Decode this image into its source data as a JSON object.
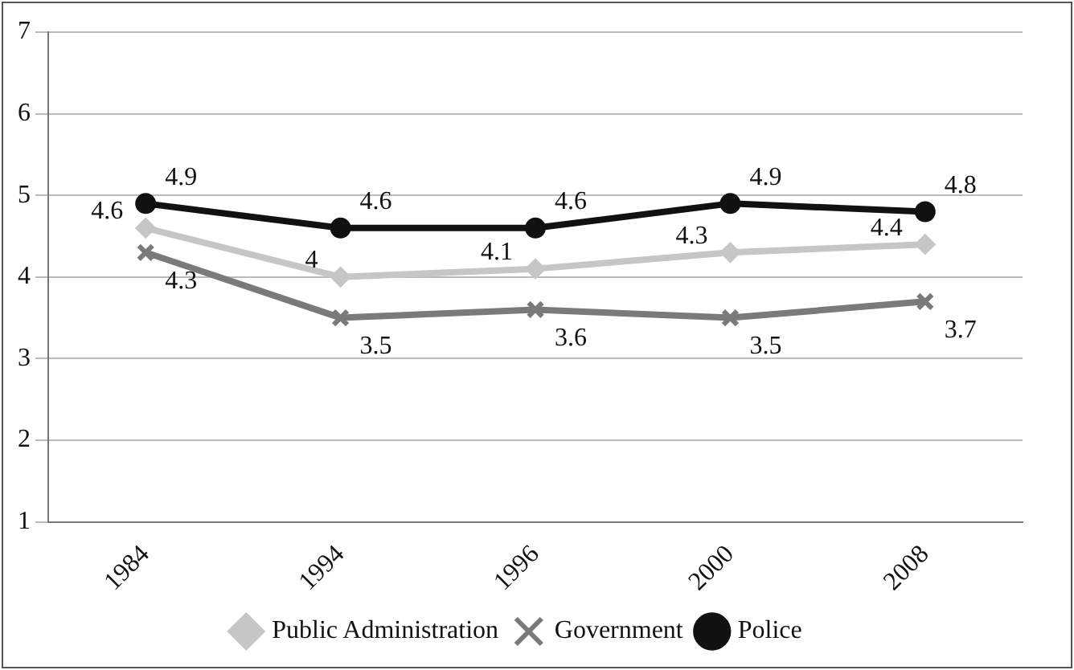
{
  "chart_data": {
    "type": "line",
    "categories": [
      "1984",
      "1994",
      "1996",
      "2000",
      "2008"
    ],
    "series": [
      {
        "name": "Public Administration",
        "color": "#c6c6c6",
        "marker": "diamond",
        "values": [
          4.6,
          4,
          4.1,
          4.3,
          4.4
        ]
      },
      {
        "name": "Government",
        "color": "#7a7a7a",
        "marker": "cross",
        "values": [
          4.3,
          3.5,
          3.6,
          3.5,
          3.7
        ]
      },
      {
        "name": "Police",
        "color": "#111111",
        "marker": "circle",
        "values": [
          4.9,
          4.6,
          4.6,
          4.9,
          4.8
        ]
      }
    ],
    "ylim": [
      1,
      7
    ],
    "yticks": [
      1,
      2,
      3,
      4,
      5,
      6,
      7
    ],
    "grid": "y",
    "legend": "bottom",
    "data_labels": true,
    "line_style": "solid"
  }
}
